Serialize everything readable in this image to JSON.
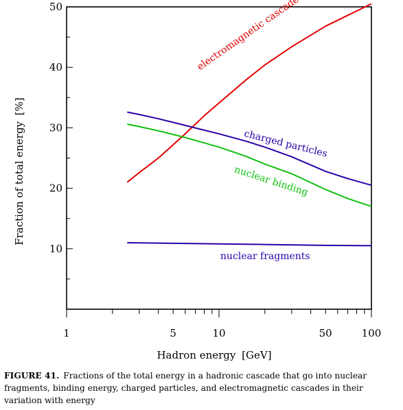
{
  "chart_data": {
    "type": "line",
    "title": "",
    "xlabel": "Hadron energy",
    "xunit": "GeV",
    "ylabel": "Fraction of total energy",
    "yunit": "%",
    "xscale": "log",
    "xlim": [
      1,
      100
    ],
    "ylim": [
      0,
      50
    ],
    "xticks": [
      1,
      5,
      10,
      50,
      100
    ],
    "yticks": [
      10,
      20,
      30,
      40,
      50
    ],
    "grid": false,
    "legend": "inline labels",
    "series": [
      {
        "name": "electromagnetic cascade",
        "color": "#e00000",
        "x": [
          2.5,
          3,
          4,
          5,
          6,
          8,
          10,
          15,
          20,
          30,
          50,
          70,
          100
        ],
        "y": [
          21,
          22.6,
          25,
          27.2,
          29,
          32,
          34.1,
          37.9,
          40.4,
          43.4,
          46.8,
          48.6,
          50.5
        ]
      },
      {
        "name": "charged particles",
        "color": "#2a00a8",
        "x": [
          2.5,
          3,
          4,
          5,
          6,
          8,
          10,
          15,
          20,
          30,
          50,
          70,
          100
        ],
        "y": [
          32.6,
          32.2,
          31.5,
          30.9,
          30.4,
          29.6,
          29,
          27.8,
          26.8,
          25.2,
          22.8,
          21.6,
          20.5
        ]
      },
      {
        "name": "nuclear binding",
        "color": "#10c010",
        "x": [
          2.5,
          3,
          4,
          5,
          6,
          8,
          10,
          15,
          20,
          30,
          50,
          70,
          100
        ],
        "y": [
          30.6,
          30.2,
          29.5,
          28.9,
          28.4,
          27.5,
          26.8,
          25.3,
          24,
          22.4,
          19.8,
          18.3,
          17
        ]
      },
      {
        "name": "nuclear fragments",
        "color": "#2a00a8",
        "x": [
          2.5,
          5,
          10,
          20,
          50,
          100
        ],
        "y": [
          11,
          10.9,
          10.8,
          10.7,
          10.55,
          10.5
        ]
      }
    ]
  },
  "caption": {
    "label": "FIGURE 41.",
    "text": "Fractions of the total energy in a hadronic cascade that go into nuclear fragments, binding energy, charged particles, and electromagnetic cascades in their variation with energy"
  }
}
